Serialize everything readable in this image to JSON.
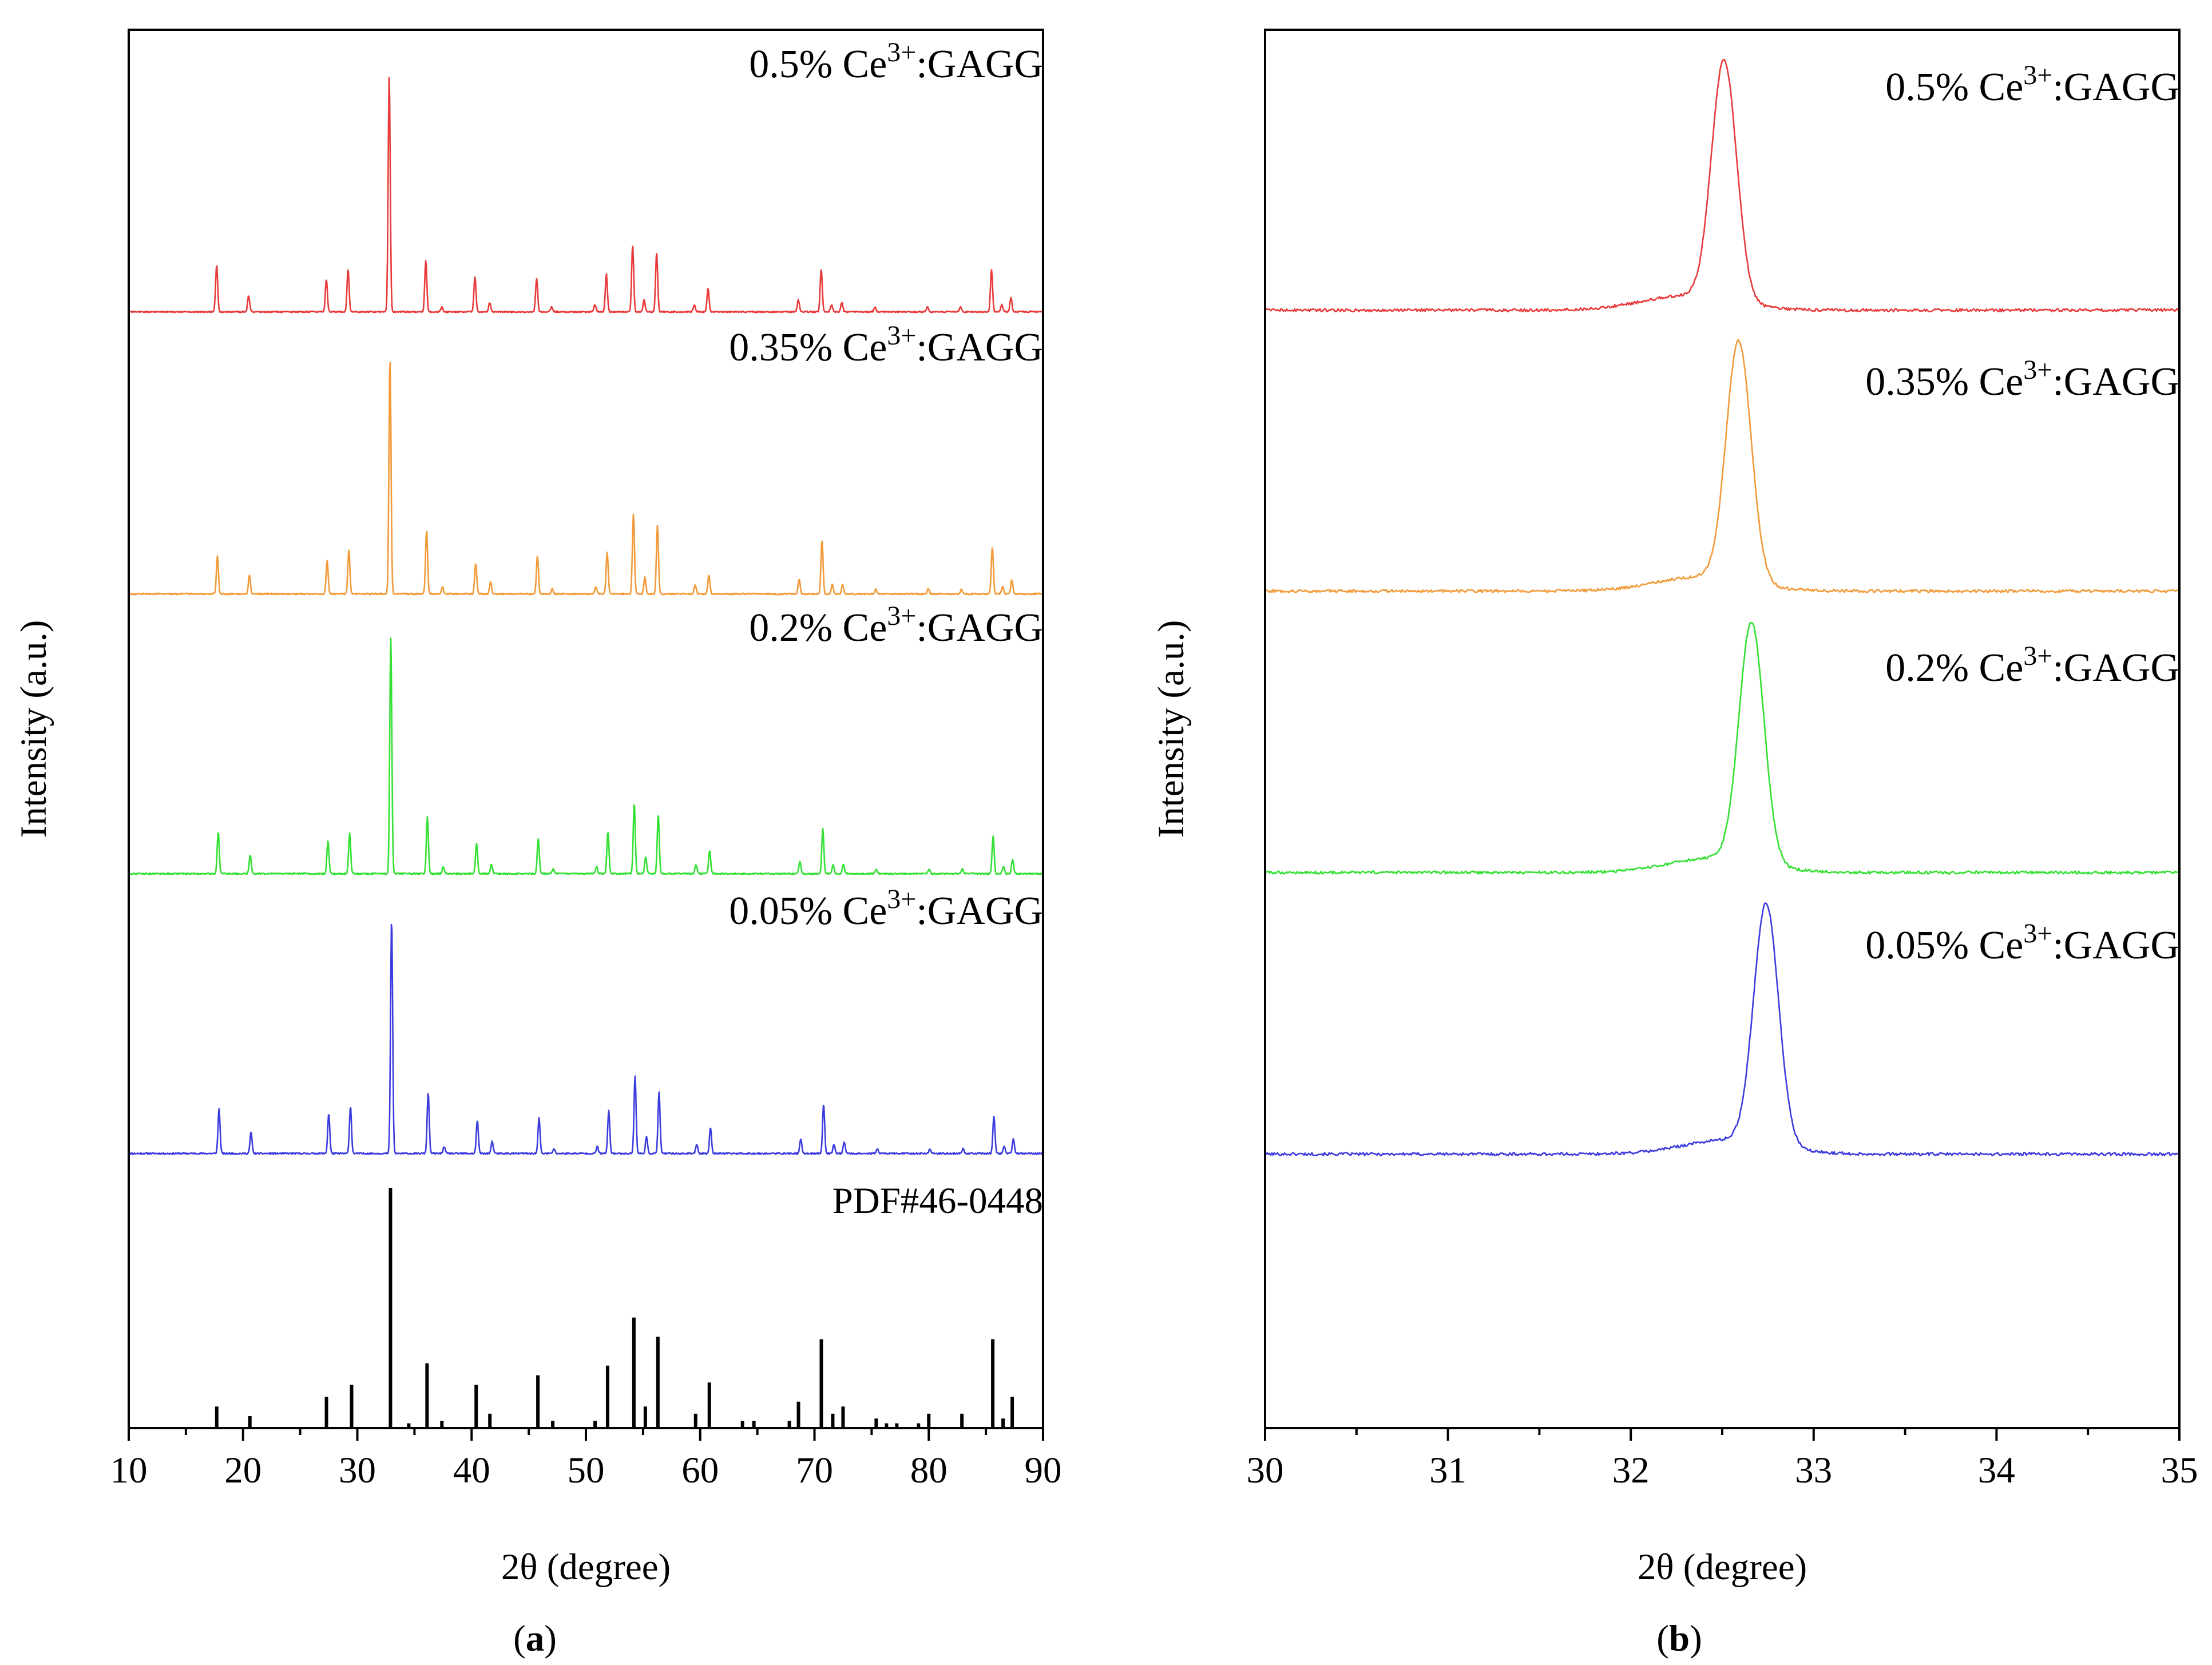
{
  "chart_data": [
    {
      "panel_label": "a",
      "type": "line",
      "xlabel": "2θ (degree)",
      "ylabel": "Intensity (a.u.)",
      "xlim": [
        10,
        90
      ],
      "xticks": [
        10,
        20,
        30,
        40,
        50,
        60,
        70,
        80,
        90
      ],
      "x_minor_step": 5,
      "y_ticks": "none",
      "reference": {
        "label": "PDF#46-0448",
        "color": "#000000",
        "sticks": [
          {
            "x": 17.7,
            "h": 0.09
          },
          {
            "x": 20.6,
            "h": 0.05
          },
          {
            "x": 27.3,
            "h": 0.13
          },
          {
            "x": 29.5,
            "h": 0.18
          },
          {
            "x": 32.9,
            "h": 1.0
          },
          {
            "x": 34.5,
            "h": 0.02
          },
          {
            "x": 36.1,
            "h": 0.27
          },
          {
            "x": 37.4,
            "h": 0.03
          },
          {
            "x": 40.4,
            "h": 0.18
          },
          {
            "x": 41.6,
            "h": 0.06
          },
          {
            "x": 45.8,
            "h": 0.22
          },
          {
            "x": 47.1,
            "h": 0.03
          },
          {
            "x": 50.8,
            "h": 0.03
          },
          {
            "x": 51.9,
            "h": 0.26
          },
          {
            "x": 54.2,
            "h": 0.46
          },
          {
            "x": 55.2,
            "h": 0.09
          },
          {
            "x": 56.3,
            "h": 0.38
          },
          {
            "x": 59.6,
            "h": 0.06
          },
          {
            "x": 60.8,
            "h": 0.19
          },
          {
            "x": 63.7,
            "h": 0.03
          },
          {
            "x": 64.7,
            "h": 0.03
          },
          {
            "x": 67.8,
            "h": 0.03
          },
          {
            "x": 68.6,
            "h": 0.11
          },
          {
            "x": 70.6,
            "h": 0.37
          },
          {
            "x": 71.6,
            "h": 0.06
          },
          {
            "x": 72.5,
            "h": 0.09
          },
          {
            "x": 75.4,
            "h": 0.04
          },
          {
            "x": 76.3,
            "h": 0.02
          },
          {
            "x": 77.2,
            "h": 0.02
          },
          {
            "x": 79.1,
            "h": 0.02
          },
          {
            "x": 80.0,
            "h": 0.06
          },
          {
            "x": 82.9,
            "h": 0.06
          },
          {
            "x": 85.6,
            "h": 0.37
          },
          {
            "x": 86.5,
            "h": 0.04
          },
          {
            "x": 87.3,
            "h": 0.13
          }
        ]
      },
      "series": [
        {
          "name": "0.05% Ce3+:GAGG",
          "label_pre": "0.05% Ce",
          "label_sup": "3+",
          "label_post": ":GAGG",
          "color": "#3b3bde",
          "shift": 0.0,
          "peaks": [
            {
              "x": 17.9,
              "h": 0.19
            },
            {
              "x": 20.7,
              "h": 0.09
            },
            {
              "x": 27.5,
              "h": 0.17
            },
            {
              "x": 29.4,
              "h": 0.2
            },
            {
              "x": 33.0,
              "h": 1.0
            },
            {
              "x": 36.2,
              "h": 0.26
            },
            {
              "x": 37.6,
              "h": 0.03
            },
            {
              "x": 40.5,
              "h": 0.14
            },
            {
              "x": 41.8,
              "h": 0.05
            },
            {
              "x": 45.9,
              "h": 0.15
            },
            {
              "x": 47.2,
              "h": 0.02
            },
            {
              "x": 51.0,
              "h": 0.03
            },
            {
              "x": 52.0,
              "h": 0.18
            },
            {
              "x": 54.3,
              "h": 0.33
            },
            {
              "x": 55.3,
              "h": 0.07
            },
            {
              "x": 56.4,
              "h": 0.26
            },
            {
              "x": 59.7,
              "h": 0.04
            },
            {
              "x": 60.9,
              "h": 0.11
            },
            {
              "x": 68.8,
              "h": 0.06
            },
            {
              "x": 70.8,
              "h": 0.21
            },
            {
              "x": 71.7,
              "h": 0.04
            },
            {
              "x": 72.6,
              "h": 0.05
            },
            {
              "x": 75.5,
              "h": 0.02
            },
            {
              "x": 80.1,
              "h": 0.02
            },
            {
              "x": 83.0,
              "h": 0.02
            },
            {
              "x": 85.7,
              "h": 0.16
            },
            {
              "x": 86.6,
              "h": 0.03
            },
            {
              "x": 87.4,
              "h": 0.06
            }
          ]
        },
        {
          "name": "0.2% Ce3+:GAGG",
          "label_pre": "0.2% Ce",
          "label_sup": "3+",
          "label_post": ":GAGG",
          "color": "#33e033",
          "shift": -0.07,
          "peaks": [
            {
              "x": 17.9,
              "h": 0.18
            },
            {
              "x": 20.7,
              "h": 0.08
            },
            {
              "x": 27.5,
              "h": 0.14
            },
            {
              "x": 29.4,
              "h": 0.17
            },
            {
              "x": 33.0,
              "h": 1.0
            },
            {
              "x": 36.2,
              "h": 0.24
            },
            {
              "x": 37.6,
              "h": 0.03
            },
            {
              "x": 40.5,
              "h": 0.13
            },
            {
              "x": 41.8,
              "h": 0.04
            },
            {
              "x": 45.9,
              "h": 0.15
            },
            {
              "x": 47.2,
              "h": 0.02
            },
            {
              "x": 51.0,
              "h": 0.03
            },
            {
              "x": 52.0,
              "h": 0.18
            },
            {
              "x": 54.3,
              "h": 0.3
            },
            {
              "x": 55.3,
              "h": 0.07
            },
            {
              "x": 56.4,
              "h": 0.25
            },
            {
              "x": 59.7,
              "h": 0.04
            },
            {
              "x": 60.9,
              "h": 0.1
            },
            {
              "x": 68.8,
              "h": 0.05
            },
            {
              "x": 70.8,
              "h": 0.19
            },
            {
              "x": 71.7,
              "h": 0.04
            },
            {
              "x": 72.6,
              "h": 0.04
            },
            {
              "x": 75.5,
              "h": 0.02
            },
            {
              "x": 80.1,
              "h": 0.02
            },
            {
              "x": 83.0,
              "h": 0.02
            },
            {
              "x": 85.7,
              "h": 0.16
            },
            {
              "x": 86.6,
              "h": 0.03
            },
            {
              "x": 87.4,
              "h": 0.06
            }
          ]
        },
        {
          "name": "0.35% Ce3+:GAGG",
          "label_pre": "0.35% Ce",
          "label_sup": "3+",
          "label_post": ":GAGG",
          "color": "#f29a38",
          "shift": -0.14,
          "peaks": [
            {
              "x": 17.9,
              "h": 0.16
            },
            {
              "x": 20.7,
              "h": 0.08
            },
            {
              "x": 27.5,
              "h": 0.14
            },
            {
              "x": 29.4,
              "h": 0.19
            },
            {
              "x": 33.0,
              "h": 1.0
            },
            {
              "x": 36.2,
              "h": 0.27
            },
            {
              "x": 37.6,
              "h": 0.03
            },
            {
              "x": 40.5,
              "h": 0.13
            },
            {
              "x": 41.8,
              "h": 0.05
            },
            {
              "x": 45.9,
              "h": 0.16
            },
            {
              "x": 47.2,
              "h": 0.02
            },
            {
              "x": 51.0,
              "h": 0.03
            },
            {
              "x": 52.0,
              "h": 0.18
            },
            {
              "x": 54.3,
              "h": 0.34
            },
            {
              "x": 55.3,
              "h": 0.07
            },
            {
              "x": 56.4,
              "h": 0.29
            },
            {
              "x": 59.7,
              "h": 0.04
            },
            {
              "x": 60.9,
              "h": 0.08
            },
            {
              "x": 68.8,
              "h": 0.06
            },
            {
              "x": 70.8,
              "h": 0.23
            },
            {
              "x": 71.7,
              "h": 0.04
            },
            {
              "x": 72.6,
              "h": 0.04
            },
            {
              "x": 75.5,
              "h": 0.02
            },
            {
              "x": 80.1,
              "h": 0.02
            },
            {
              "x": 83.0,
              "h": 0.02
            },
            {
              "x": 85.7,
              "h": 0.2
            },
            {
              "x": 86.6,
              "h": 0.03
            },
            {
              "x": 87.4,
              "h": 0.06
            }
          ]
        },
        {
          "name": "0.5% Ce3+:GAGG",
          "label_pre": "0.5% Ce",
          "label_sup": "3+",
          "label_post": ":GAGG",
          "color": "#e83a3a",
          "shift": -0.21,
          "peaks": [
            {
              "x": 17.9,
              "h": 0.2
            },
            {
              "x": 20.7,
              "h": 0.07
            },
            {
              "x": 27.5,
              "h": 0.14
            },
            {
              "x": 29.4,
              "h": 0.18
            },
            {
              "x": 33.0,
              "h": 1.0
            },
            {
              "x": 36.2,
              "h": 0.22
            },
            {
              "x": 37.6,
              "h": 0.02
            },
            {
              "x": 40.5,
              "h": 0.15
            },
            {
              "x": 41.8,
              "h": 0.04
            },
            {
              "x": 45.9,
              "h": 0.14
            },
            {
              "x": 47.2,
              "h": 0.02
            },
            {
              "x": 51.0,
              "h": 0.03
            },
            {
              "x": 52.0,
              "h": 0.16
            },
            {
              "x": 54.3,
              "h": 0.28
            },
            {
              "x": 55.3,
              "h": 0.05
            },
            {
              "x": 56.4,
              "h": 0.25
            },
            {
              "x": 59.7,
              "h": 0.03
            },
            {
              "x": 60.9,
              "h": 0.1
            },
            {
              "x": 68.8,
              "h": 0.05
            },
            {
              "x": 70.8,
              "h": 0.18
            },
            {
              "x": 71.7,
              "h": 0.03
            },
            {
              "x": 72.6,
              "h": 0.04
            },
            {
              "x": 75.5,
              "h": 0.02
            },
            {
              "x": 80.1,
              "h": 0.02
            },
            {
              "x": 83.0,
              "h": 0.02
            },
            {
              "x": 85.7,
              "h": 0.18
            },
            {
              "x": 86.6,
              "h": 0.03
            },
            {
              "x": 87.4,
              "h": 0.06
            }
          ]
        }
      ]
    },
    {
      "panel_label": "b",
      "type": "line",
      "xlabel": "2θ (degree)",
      "ylabel": "Intensity (a.u.)",
      "xlim": [
        30,
        35
      ],
      "xticks": [
        30,
        31,
        32,
        33,
        34,
        35
      ],
      "x_minor_step": 0.5,
      "y_ticks": "none",
      "series": [
        {
          "name": "0.05% Ce3+:GAGG",
          "label_pre": "0.05% Ce",
          "label_sup": "3+",
          "label_post": ":GAGG",
          "color": "#3b3bde",
          "peak_x": 32.74
        },
        {
          "name": "0.2% Ce3+:GAGG",
          "label_pre": "0.2% Ce",
          "label_sup": "3+",
          "label_post": ":GAGG",
          "color": "#33e033",
          "peak_x": 32.66
        },
        {
          "name": "0.35% Ce3+:GAGG",
          "label_pre": "0.35% Ce",
          "label_sup": "3+",
          "label_post": ":GAGG",
          "color": "#f29a38",
          "peak_x": 32.59
        },
        {
          "name": "0.5% Ce3+:GAGG",
          "label_pre": "0.5% Ce",
          "label_sup": "3+",
          "label_post": ":GAGG",
          "color": "#e83a3a",
          "peak_x": 32.51
        }
      ]
    }
  ]
}
